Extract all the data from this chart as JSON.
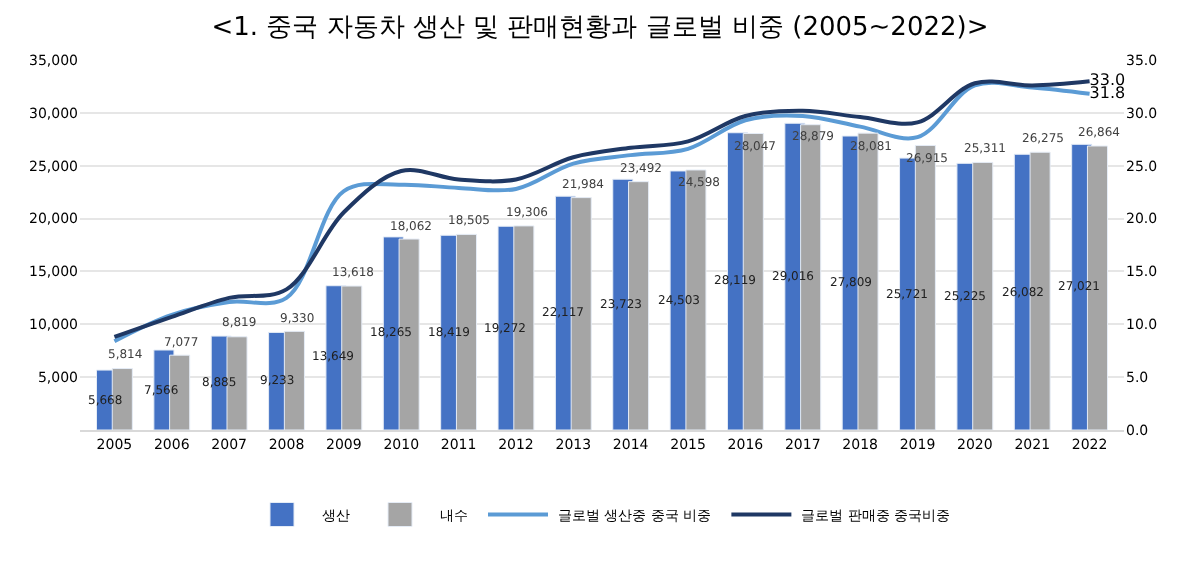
{
  "chart_data": {
    "type": "bar",
    "title": "<1. 중국 자동차 생산 및 판매현황과 글로벌 비중 (2005~2022)>",
    "categories": [
      "2005",
      "2006",
      "2007",
      "2008",
      "2009",
      "2010",
      "2011",
      "2012",
      "2013",
      "2014",
      "2015",
      "2016",
      "2017",
      "2018",
      "2019",
      "2020",
      "2021",
      "2022"
    ],
    "series": [
      {
        "name": "생산",
        "color": "#4472c4",
        "values": [
          5668,
          7566,
          8885,
          9233,
          13649,
          18265,
          18419,
          19272,
          22117,
          23723,
          24503,
          28119,
          29016,
          27809,
          25721,
          25225,
          26082,
          27021
        ],
        "value_labels": [
          "5,668",
          "7,566",
          "8,885",
          "9,233",
          "13,649",
          "18,265",
          "18,419",
          "19,272",
          "22,117",
          "23,723",
          "24,503",
          "28,119",
          "29,016",
          "27,809",
          "25,721",
          "25,225",
          "26,082",
          "27,021"
        ]
      },
      {
        "name": "내수",
        "color": "#a5a5a5",
        "values": [
          5814,
          7077,
          8819,
          9330,
          13618,
          18062,
          18505,
          19306,
          21984,
          23492,
          24598,
          28047,
          28879,
          28081,
          26915,
          25311,
          26275,
          26864
        ],
        "value_labels": [
          "5,814",
          "7,077",
          "8,819",
          "9,330",
          "13,618",
          "18,062",
          "18,505",
          "19,306",
          "21,984",
          "23,492",
          "24,598",
          "28,047",
          "28,879",
          "28,081",
          "26,915",
          "25,311",
          "26,275",
          "26,864"
        ]
      },
      {
        "name": "글로벌 생산중 중국 비중",
        "type": "line",
        "axis": "y2",
        "color": "#5b9bd5",
        "values": [
          8.4,
          10.9,
          12.1,
          12.5,
          22.6,
          23.2,
          22.9,
          22.8,
          25.2,
          26.0,
          26.6,
          29.3,
          29.7,
          28.7,
          27.7,
          32.6,
          32.4,
          31.8
        ],
        "value_labels": [
          null,
          null,
          null,
          null,
          null,
          null,
          null,
          null,
          null,
          null,
          null,
          null,
          null,
          null,
          null,
          null,
          null,
          "31.8"
        ]
      },
      {
        "name": "글로벌 판매중 중국비중",
        "type": "line",
        "axis": "y2",
        "color": "#1f3864",
        "values": [
          8.8,
          10.7,
          12.5,
          13.3,
          20.6,
          24.5,
          23.7,
          23.7,
          25.8,
          26.7,
          27.3,
          29.7,
          30.2,
          29.6,
          29.1,
          32.8,
          32.6,
          33.0
        ],
        "value_labels": [
          null,
          null,
          null,
          null,
          null,
          null,
          null,
          null,
          null,
          null,
          null,
          null,
          null,
          null,
          null,
          null,
          null,
          "33.0"
        ]
      }
    ],
    "ylim": [
      0,
      35000
    ],
    "yticks": [
      {
        "value": 0,
        "label": null
      },
      {
        "value": 5000,
        "label": "5,000"
      },
      {
        "value": 10000,
        "label": "10,000"
      },
      {
        "value": 15000,
        "label": "15,000"
      },
      {
        "value": 20000,
        "label": "20,000"
      },
      {
        "value": 25000,
        "label": "25,000"
      },
      {
        "value": 30000,
        "label": "30,000"
      },
      {
        "value": 35000,
        "label": "35,000"
      }
    ],
    "y2lim": [
      0,
      35
    ],
    "y2ticks": [
      {
        "value": 0,
        "label": "0.0"
      },
      {
        "value": 5,
        "label": "5.0"
      },
      {
        "value": 10,
        "label": "10.0"
      },
      {
        "value": 15,
        "label": "15.0"
      },
      {
        "value": 20,
        "label": "20.0"
      },
      {
        "value": 25,
        "label": "25.0"
      },
      {
        "value": 30,
        "label": "30.0"
      },
      {
        "value": 35,
        "label": "35.0"
      }
    ],
    "grid": "y",
    "legend": "bottom"
  }
}
